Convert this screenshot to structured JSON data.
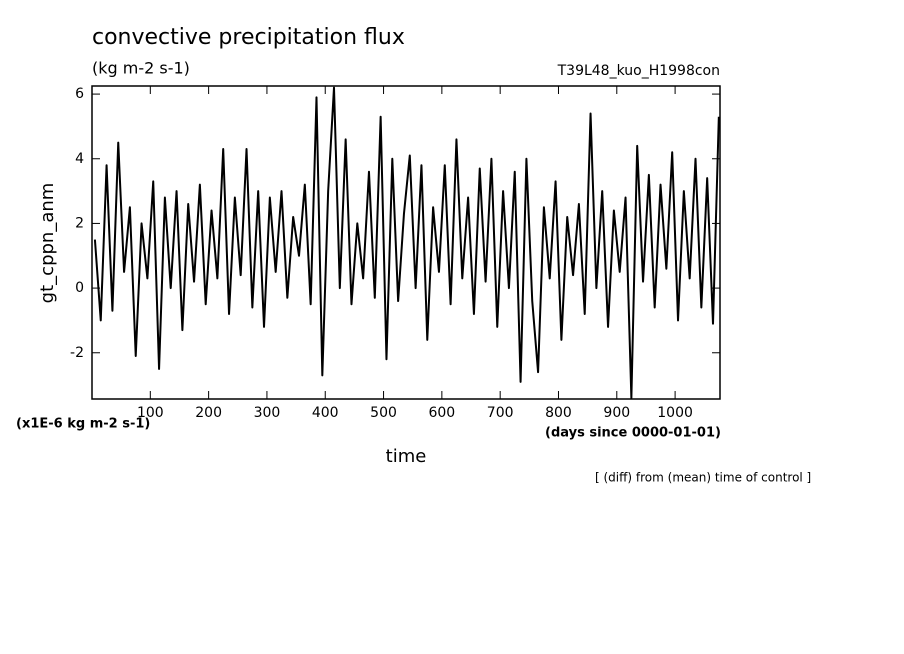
{
  "chart_data": {
    "type": "line",
    "title": "convective precipitation flux",
    "subtitle": "(kg m-2 s-1)",
    "run_label": "T39L48_kuo_H1998con",
    "y_label": "gt_cppn_anm",
    "y_unit": "(x1E-6 kg m-2 s-1)",
    "x_label": "time",
    "x_unit": "(days since 0000-01-01)",
    "note": "[ (diff) from (mean) time of control ]",
    "x": [
      5,
      15,
      25,
      35,
      45,
      55,
      65,
      75,
      85,
      95,
      105,
      115,
      125,
      135,
      145,
      155,
      165,
      175,
      185,
      195,
      205,
      215,
      225,
      235,
      245,
      255,
      265,
      275,
      285,
      295,
      305,
      315,
      325,
      335,
      345,
      355,
      365,
      375,
      385,
      395,
      405,
      415,
      425,
      435,
      445,
      455,
      465,
      475,
      485,
      495,
      505,
      515,
      525,
      535,
      545,
      555,
      565,
      575,
      585,
      595,
      605,
      615,
      625,
      635,
      645,
      655,
      665,
      675,
      685,
      695,
      705,
      715,
      725,
      735,
      745,
      755,
      765,
      775,
      785,
      795,
      805,
      815,
      825,
      835,
      845,
      855,
      865,
      875,
      885,
      895,
      905,
      915,
      925,
      935,
      945,
      955,
      965,
      975,
      985,
      995,
      1005,
      1015,
      1025,
      1035,
      1045,
      1055,
      1065,
      1075
    ],
    "values": [
      1.5,
      -1.0,
      3.8,
      -0.7,
      4.5,
      0.5,
      2.5,
      -2.1,
      2.0,
      0.3,
      3.3,
      -2.5,
      2.8,
      0.0,
      3.0,
      -1.3,
      2.6,
      0.2,
      3.2,
      -0.5,
      2.4,
      0.3,
      4.3,
      -0.8,
      2.8,
      0.4,
      4.3,
      -0.6,
      3.0,
      -1.2,
      2.8,
      0.5,
      3.0,
      -0.3,
      2.2,
      1.0,
      3.2,
      -0.5,
      5.9,
      -2.7,
      3.0,
      6.2,
      0.0,
      4.6,
      -0.5,
      2.0,
      0.3,
      3.6,
      -0.3,
      5.3,
      -2.2,
      4.0,
      -0.4,
      2.3,
      4.1,
      0.0,
      3.8,
      -1.6,
      2.5,
      0.5,
      3.8,
      -0.5,
      4.6,
      0.3,
      2.8,
      -0.8,
      3.7,
      0.2,
      4.0,
      -1.2,
      3.0,
      0.0,
      3.6,
      -2.9,
      4.0,
      -0.4,
      -2.6,
      2.5,
      0.3,
      3.3,
      -1.6,
      2.2,
      0.4,
      2.6,
      -0.8,
      5.4,
      0.0,
      3.0,
      -1.2,
      2.4,
      0.5,
      2.8,
      -3.4,
      4.4,
      0.2,
      3.5,
      -0.6,
      3.2,
      0.6,
      4.2,
      -1.0,
      3.0,
      0.3,
      4.0,
      -0.6,
      3.4,
      -1.1,
      5.3
    ],
    "color": "#000000",
    "xlim": [
      0,
      1077
    ],
    "ylim": [
      -3.43,
      6.25
    ],
    "xticks": [
      100,
      200,
      300,
      400,
      500,
      600,
      700,
      800,
      900,
      1000
    ],
    "yticks": [
      -2,
      0,
      2,
      4,
      6
    ]
  }
}
